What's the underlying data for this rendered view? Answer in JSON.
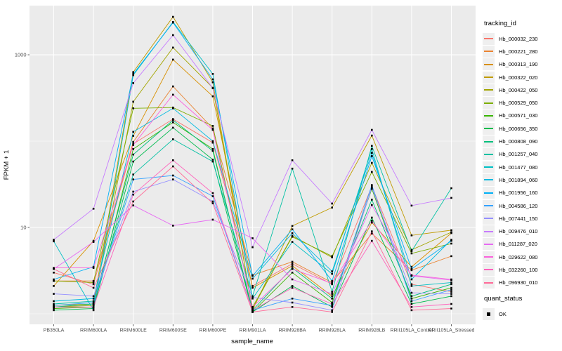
{
  "figure": {
    "background": "#ffffff",
    "panel_bg": "#ebebeb",
    "grid_color": "#ffffff",
    "tick_label_color": "#4d4d4d",
    "axis_title_color": "#000000",
    "point_color": "#000000",
    "legend_key_bg": "#efefef"
  },
  "legend": {
    "title": "tracking_id"
  },
  "quant_legend": {
    "title": "quant_status",
    "entries": [
      {
        "label": "OK",
        "symbol": "black-square"
      }
    ]
  },
  "chart_data": {
    "type": "line",
    "xlabel": "sample_name",
    "ylabel": "FPKM + 1",
    "y_scale": "log10",
    "y_major_ticks": [
      {
        "value": 10,
        "label": "10"
      },
      {
        "value": 1000,
        "label": "1000"
      }
    ],
    "y_minor_ticks": [
      1,
      100
    ],
    "ylim": [
      0.755,
      3710
    ],
    "grid": true,
    "legend_position": "right",
    "categories": [
      "PB350LA",
      "RRIM600LA",
      "RRIM600LE",
      "RRIM600SE",
      "RRIM600PE",
      "RRIM901LA",
      "RRIM928BA",
      "RRIM928LA",
      "RRIM928LB",
      "RRII105LA_Control",
      "RRII105LA_Stressed"
    ],
    "series": [
      {
        "name": "Hb_000032_230",
        "color": "#F8766D",
        "values": [
          3.0,
          2.2,
          93,
          180,
          96,
          2.1,
          3.8,
          2.2,
          30,
          2.2,
          1.8
        ]
      },
      {
        "name": "Hb_000221_280",
        "color": "#EA8331",
        "values": [
          2.4,
          2.4,
          98,
          430,
          140,
          2.8,
          4.0,
          2.3,
          8.5,
          3.2,
          4.65
        ]
      },
      {
        "name": "Hb_000313_190",
        "color": "#D89000",
        "values": [
          2.1,
          7.0,
          115,
          880,
          330,
          2.0,
          3.6,
          1.6,
          11.4,
          3.5,
          8.6
        ]
      },
      {
        "name": "Hb_000322_020",
        "color": "#C09B00",
        "values": [
          1.25,
          1.3,
          630,
          2750,
          480,
          1.1,
          10.4,
          17.0,
          116,
          8.1,
          9.3
        ]
      },
      {
        "name": "Hb_000422_050",
        "color": "#A3A500",
        "values": [
          1.2,
          1.25,
          286,
          1210,
          415,
          1.15,
          8.0,
          4.5,
          56,
          5.5,
          8.8
        ]
      },
      {
        "name": "Hb_000529_050",
        "color": "#7CAE00",
        "values": [
          2.4,
          2.3,
          240,
          245,
          150,
          1.2,
          7.8,
          4.65,
          44,
          5.0,
          6.5
        ]
      },
      {
        "name": "Hb_000571_030",
        "color": "#39B600",
        "values": [
          1.15,
          1.2,
          81,
          165,
          81,
          1.05,
          3.0,
          1.35,
          28,
          1.5,
          2.0
        ]
      },
      {
        "name": "Hb_000656_350",
        "color": "#00BB4E",
        "values": [
          1.1,
          1.15,
          58,
          143,
          61,
          1.05,
          2.1,
          1.2,
          13,
          1.3,
          1.6
        ]
      },
      {
        "name": "Hb_000808_090",
        "color": "#00BF7D",
        "values": [
          1.2,
          1.3,
          70,
          175,
          77,
          1.1,
          3.4,
          1.5,
          21,
          1.6,
          2.2
        ]
      },
      {
        "name": "Hb_001257_040",
        "color": "#00C1A3",
        "values": [
          1.3,
          1.4,
          41,
          105,
          58,
          1.6,
          48,
          1.8,
          88,
          5.3,
          28.5
        ]
      },
      {
        "name": "Hb_001477_080",
        "color": "#00BFC4",
        "values": [
          6.9,
          1.1,
          580,
          2400,
          600,
          1.5,
          6.8,
          2.9,
          81,
          2.1,
          2.3
        ]
      },
      {
        "name": "Hb_001894_060",
        "color": "#00BAE0",
        "values": [
          1.4,
          1.5,
          128,
          240,
          100,
          2.55,
          8.6,
          3.1,
          73,
          2.5,
          7.2
        ]
      },
      {
        "name": "Hb_001956_160",
        "color": "#00B0F6",
        "values": [
          2.5,
          3.5,
          600,
          2360,
          520,
          2.75,
          9.5,
          2.4,
          67,
          3.3,
          7.0
        ]
      },
      {
        "name": "Hb_004586_120",
        "color": "#35A2FF",
        "values": [
          1.25,
          1.35,
          36,
          40,
          23,
          1.1,
          1.5,
          1.25,
          31,
          1.4,
          1.9
        ]
      },
      {
        "name": "Hb_007441_150",
        "color": "#9590FF",
        "values": [
          1.7,
          1.6,
          26,
          36,
          20,
          1.55,
          1.35,
          1.1,
          29,
          1.75,
          1.7
        ]
      },
      {
        "name": "Hb_009476_010",
        "color": "#C77CFF",
        "values": [
          7.2,
          16.5,
          470,
          1690,
          410,
          5.9,
          60,
          18.9,
          135,
          17.9,
          22
        ]
      },
      {
        "name": "Hb_011287_020",
        "color": "#E76BF3",
        "values": [
          3.3,
          6.8,
          18,
          10.5,
          12.3,
          7.5,
          2.5,
          1.7,
          18.2,
          2.75,
          2.45
        ]
      },
      {
        "name": "Hb_029622_080",
        "color": "#FA62DB",
        "values": [
          3.4,
          3.4,
          90,
          345,
          135,
          1.2,
          3.3,
          2.25,
          12,
          2.8,
          2.5
        ]
      },
      {
        "name": "Hb_032260_100",
        "color": "#FF62BC",
        "values": [
          1.2,
          1.2,
          24,
          60,
          25,
          1.1,
          2.0,
          1.3,
          7,
          1.2,
          1.3
        ]
      },
      {
        "name": "Hb_096930_010",
        "color": "#FF6A98",
        "values": [
          3.3,
          2.0,
          20,
          51,
          19,
          1.05,
          1.2,
          1.05,
          9,
          1.1,
          1.15
        ]
      }
    ]
  }
}
